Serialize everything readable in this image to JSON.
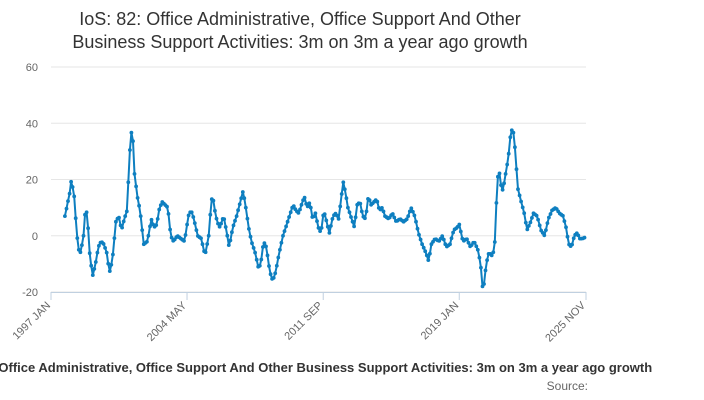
{
  "chart_data": {
    "type": "line",
    "title_line1": "IoS: 82: Office Administrative, Office Support And Other",
    "title_line2": "Business Support Activities: 3m on 3m a year ago growth",
    "series_name": "IoS: 82: Office Administrative, Office Support And Other Business Support Activities: 3m on 3m a year ago growth",
    "source": "Source:",
    "ylim": [
      -20,
      60
    ],
    "y_ticks": [
      -20,
      0,
      20,
      40,
      60
    ],
    "x_range": [
      1997.0,
      2025.83
    ],
    "x_ticks": [
      {
        "label": "1997 JAN",
        "x": 1997.0
      },
      {
        "label": "2004 MAY",
        "x": 2004.33
      },
      {
        "label": "2011 SEP",
        "x": 2011.67
      },
      {
        "label": "2019 JAN",
        "x": 2019.0
      },
      {
        "label": "2025 NOV",
        "x": 2025.83
      }
    ],
    "grid": true,
    "line_color": "#0e7fc0",
    "keyframes": [
      [
        1997.75,
        7
      ],
      [
        1998.0,
        15
      ],
      [
        1998.1,
        20
      ],
      [
        1998.25,
        14
      ],
      [
        1998.4,
        0
      ],
      [
        1998.5,
        -5
      ],
      [
        1998.6,
        -6
      ],
      [
        1998.75,
        0
      ],
      [
        1998.85,
        9
      ],
      [
        1998.95,
        8
      ],
      [
        1999.1,
        -8
      ],
      [
        1999.25,
        -14
      ],
      [
        1999.4,
        -10
      ],
      [
        1999.55,
        -4
      ],
      [
        1999.7,
        -2
      ],
      [
        1999.85,
        -3
      ],
      [
        2000.0,
        -6
      ],
      [
        2000.15,
        -13
      ],
      [
        2000.3,
        -9
      ],
      [
        2000.5,
        5
      ],
      [
        2000.65,
        7
      ],
      [
        2000.8,
        2
      ],
      [
        2000.95,
        6
      ],
      [
        2001.1,
        9
      ],
      [
        2001.2,
        24
      ],
      [
        2001.3,
        37
      ],
      [
        2001.4,
        36
      ],
      [
        2001.5,
        22
      ],
      [
        2001.65,
        14
      ],
      [
        2001.8,
        9
      ],
      [
        2002.0,
        -3
      ],
      [
        2002.2,
        -2
      ],
      [
        2002.4,
        6
      ],
      [
        2002.55,
        3
      ],
      [
        2002.7,
        4
      ],
      [
        2002.85,
        10
      ],
      [
        2003.0,
        12
      ],
      [
        2003.15,
        11
      ],
      [
        2003.3,
        10
      ],
      [
        2003.45,
        0
      ],
      [
        2003.6,
        -2
      ],
      [
        2003.8,
        0
      ],
      [
        2004.0,
        -1
      ],
      [
        2004.2,
        -2
      ],
      [
        2004.4,
        7
      ],
      [
        2004.55,
        9
      ],
      [
        2004.7,
        6
      ],
      [
        2004.9,
        0
      ],
      [
        2005.1,
        -1
      ],
      [
        2005.3,
        -7
      ],
      [
        2005.5,
        0
      ],
      [
        2005.6,
        9
      ],
      [
        2005.7,
        15
      ],
      [
        2005.8,
        10
      ],
      [
        2005.95,
        5
      ],
      [
        2006.1,
        3
      ],
      [
        2006.3,
        7
      ],
      [
        2006.45,
        2
      ],
      [
        2006.6,
        -4
      ],
      [
        2006.8,
        3
      ],
      [
        2007.0,
        7
      ],
      [
        2007.2,
        12
      ],
      [
        2007.35,
        16
      ],
      [
        2007.5,
        10
      ],
      [
        2007.65,
        3
      ],
      [
        2007.8,
        -2
      ],
      [
        2008.0,
        -6
      ],
      [
        2008.2,
        -12
      ],
      [
        2008.35,
        -8
      ],
      [
        2008.45,
        -2
      ],
      [
        2008.6,
        -4
      ],
      [
        2008.8,
        -13
      ],
      [
        2008.95,
        -16
      ],
      [
        2009.1,
        -13
      ],
      [
        2009.3,
        -6
      ],
      [
        2009.5,
        0
      ],
      [
        2009.7,
        4
      ],
      [
        2009.9,
        8
      ],
      [
        2010.05,
        11
      ],
      [
        2010.2,
        9
      ],
      [
        2010.35,
        8
      ],
      [
        2010.5,
        11
      ],
      [
        2010.65,
        14
      ],
      [
        2010.8,
        10
      ],
      [
        2010.95,
        12
      ],
      [
        2011.1,
        6
      ],
      [
        2011.25,
        8
      ],
      [
        2011.4,
        3
      ],
      [
        2011.55,
        1
      ],
      [
        2011.7,
        9
      ],
      [
        2011.85,
        5
      ],
      [
        2012.0,
        1
      ],
      [
        2012.2,
        7
      ],
      [
        2012.35,
        8
      ],
      [
        2012.5,
        6
      ],
      [
        2012.65,
        14
      ],
      [
        2012.75,
        19
      ],
      [
        2012.85,
        16
      ],
      [
        2013.0,
        10
      ],
      [
        2013.2,
        6
      ],
      [
        2013.35,
        3
      ],
      [
        2013.5,
        11
      ],
      [
        2013.65,
        12
      ],
      [
        2013.8,
        7
      ],
      [
        2013.95,
        6
      ],
      [
        2014.1,
        14
      ],
      [
        2014.25,
        11
      ],
      [
        2014.4,
        12
      ],
      [
        2014.55,
        13
      ],
      [
        2014.7,
        9
      ],
      [
        2014.85,
        10
      ],
      [
        2015.0,
        7
      ],
      [
        2015.2,
        6
      ],
      [
        2015.4,
        8
      ],
      [
        2015.6,
        5
      ],
      [
        2015.8,
        6
      ],
      [
        2016.0,
        5
      ],
      [
        2016.2,
        6
      ],
      [
        2016.4,
        10
      ],
      [
        2016.6,
        7
      ],
      [
        2016.8,
        1
      ],
      [
        2017.0,
        -3
      ],
      [
        2017.2,
        -6
      ],
      [
        2017.35,
        -9
      ],
      [
        2017.5,
        -3
      ],
      [
        2017.7,
        -1
      ],
      [
        2017.9,
        -2
      ],
      [
        2018.1,
        0
      ],
      [
        2018.3,
        -4
      ],
      [
        2018.5,
        -3
      ],
      [
        2018.7,
        2
      ],
      [
        2018.9,
        3
      ],
      [
        2019.0,
        4
      ],
      [
        2019.2,
        -2
      ],
      [
        2019.4,
        -1
      ],
      [
        2019.6,
        -4
      ],
      [
        2019.8,
        -2
      ],
      [
        2020.0,
        -5
      ],
      [
        2020.15,
        -10
      ],
      [
        2020.25,
        -18
      ],
      [
        2020.35,
        -17
      ],
      [
        2020.45,
        -10
      ],
      [
        2020.6,
        -6
      ],
      [
        2020.75,
        -7
      ],
      [
        2020.9,
        -5
      ],
      [
        2021.05,
        20
      ],
      [
        2021.15,
        23
      ],
      [
        2021.25,
        18
      ],
      [
        2021.35,
        16
      ],
      [
        2021.5,
        22
      ],
      [
        2021.65,
        28
      ],
      [
        2021.75,
        35
      ],
      [
        2021.85,
        38
      ],
      [
        2021.95,
        36
      ],
      [
        2022.05,
        27
      ],
      [
        2022.15,
        17
      ],
      [
        2022.3,
        13
      ],
      [
        2022.5,
        8
      ],
      [
        2022.65,
        2
      ],
      [
        2022.85,
        5
      ],
      [
        2023.0,
        8
      ],
      [
        2023.2,
        7
      ],
      [
        2023.4,
        2
      ],
      [
        2023.6,
        0
      ],
      [
        2023.8,
        6
      ],
      [
        2024.0,
        9
      ],
      [
        2024.2,
        10
      ],
      [
        2024.4,
        8
      ],
      [
        2024.6,
        7
      ],
      [
        2024.75,
        3
      ],
      [
        2024.9,
        -3
      ],
      [
        2025.05,
        -4
      ],
      [
        2025.2,
        0
      ],
      [
        2025.35,
        1
      ],
      [
        2025.5,
        -1
      ],
      [
        2025.65,
        -1
      ],
      [
        2025.8,
        -0.5
      ]
    ]
  }
}
